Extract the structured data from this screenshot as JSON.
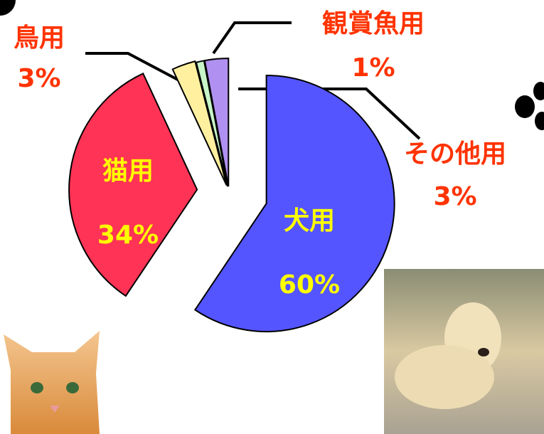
{
  "chart_data": {
    "type": "pie",
    "categories": [
      "犬用",
      "猫用",
      "鳥用",
      "観賞魚用",
      "その他用"
    ],
    "values": [
      60,
      34,
      3,
      1,
      3
    ],
    "value_labels": [
      "60%",
      "34%",
      "3%",
      "1%",
      "3%"
    ],
    "colors": [
      "#5555ff",
      "#ff3355",
      "#fff0a0",
      "#c8f5c8",
      "#b090f0"
    ]
  }
}
